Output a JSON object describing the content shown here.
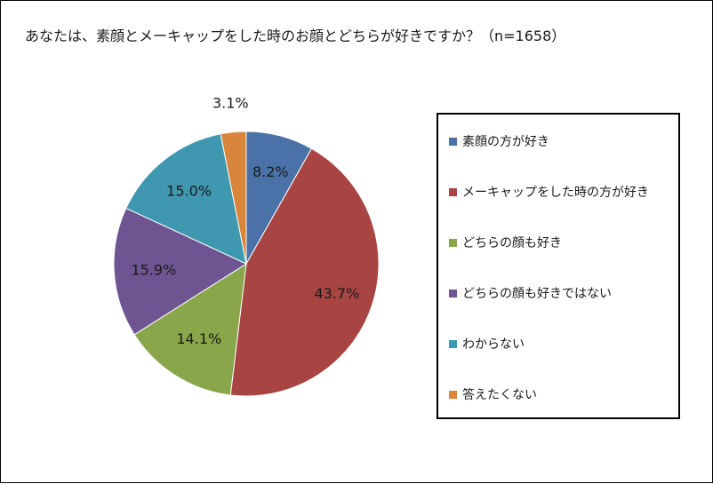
{
  "chart_data": {
    "type": "pie",
    "title": "あなたは、素顔とメーキャップをした時のお顔とどちらが好きですか？（n=1658）",
    "categories": [
      "素顔の方が好き",
      "メーキャップをした時の方が好き",
      "どちらの顔も好き",
      "どちらの顔も好きではない",
      "わからない",
      "答えたくない"
    ],
    "values": [
      8.2,
      43.7,
      14.1,
      15.9,
      15.0,
      3.1
    ],
    "labels": [
      "8.2%",
      "43.7%",
      "14.1%",
      "15.9%",
      "15.0%",
      "3.1%"
    ],
    "colors": [
      "#4a72a9",
      "#a84542",
      "#89a64b",
      "#6e5592",
      "#3f97b0",
      "#d9853b"
    ],
    "start_angle": "12 o'clock",
    "direction": "clockwise",
    "legend_position": "right"
  }
}
